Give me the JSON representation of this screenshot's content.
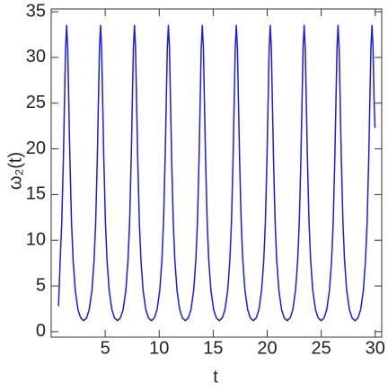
{
  "chart_data": {
    "type": "line",
    "xlabel": "t",
    "ylabel": "ω₂(t)",
    "xlim": [
      0,
      30.6
    ],
    "ylim": [
      -0.6,
      35.3
    ],
    "xticks": [
      5,
      10,
      15,
      20,
      25,
      30
    ],
    "yticks": [
      0,
      5,
      10,
      15,
      20,
      25,
      30,
      35
    ],
    "grid": false,
    "series": [
      {
        "color": "#1a1ae6",
        "x": [
          0.68,
          0.83,
          0.98,
          1.13,
          1.23,
          1.33,
          1.43,
          1.53,
          1.63,
          1.73,
          1.88,
          2.03,
          2.23,
          2.48,
          2.73,
          3.0,
          3.27,
          3.52,
          3.77,
          3.97,
          4.12,
          4.27,
          4.37,
          4.47,
          4.57,
          4.67,
          4.77,
          4.87,
          5.02,
          5.17,
          5.37,
          5.62,
          5.87,
          6.14,
          6.41,
          6.66,
          6.91,
          7.11,
          7.26,
          7.41,
          7.51,
          7.61,
          7.71,
          7.81,
          7.91,
          8.01,
          8.16,
          8.31,
          8.51,
          8.76,
          9.01,
          9.28,
          9.55,
          9.8,
          10.05,
          10.25,
          10.4,
          10.55,
          10.65,
          10.75,
          10.85,
          10.95,
          11.05,
          11.15,
          11.3,
          11.45,
          11.65,
          11.9,
          12.15,
          12.42,
          12.69,
          12.94,
          13.19,
          13.39,
          13.54,
          13.69,
          13.79,
          13.89,
          13.99,
          14.09,
          14.19,
          14.29,
          14.44,
          14.59,
          14.79,
          15.04,
          15.29,
          15.57,
          15.84,
          16.09,
          16.34,
          16.54,
          16.69,
          16.84,
          16.94,
          17.04,
          17.14,
          17.24,
          17.34,
          17.44,
          17.59,
          17.74,
          17.94,
          18.19,
          18.44,
          18.71,
          18.98,
          19.23,
          19.48,
          19.68,
          19.83,
          19.98,
          20.08,
          20.18,
          20.28,
          20.38,
          20.48,
          20.58,
          20.73,
          20.88,
          21.08,
          21.33,
          21.58,
          21.85,
          22.12,
          22.37,
          22.62,
          22.82,
          22.97,
          23.12,
          23.22,
          23.32,
          23.42,
          23.52,
          23.62,
          23.72,
          23.87,
          24.02,
          24.22,
          24.47,
          24.72,
          24.99,
          25.26,
          25.51,
          25.76,
          25.96,
          26.11,
          26.26,
          26.36,
          26.46,
          26.56,
          26.66,
          26.76,
          26.86,
          27.01,
          27.16,
          27.36,
          27.61,
          27.86,
          28.13,
          28.4,
          28.65,
          28.9,
          29.1,
          29.25,
          29.4,
          29.5,
          29.6,
          29.7,
          29.8,
          29.9,
          29.98
        ],
        "values": [
          2.8,
          7.8,
          12,
          19,
          25,
          31,
          33.5,
          31,
          25,
          19,
          12,
          7.8,
          4.5,
          2.4,
          1.5,
          1.2,
          1.5,
          2.4,
          4.5,
          7.8,
          12,
          19,
          25,
          31,
          33.5,
          31,
          25,
          19,
          12,
          7.8,
          4.5,
          2.4,
          1.5,
          1.2,
          1.5,
          2.4,
          4.5,
          7.8,
          12,
          19,
          25,
          31,
          33.5,
          31,
          25,
          19,
          12,
          7.8,
          4.5,
          2.4,
          1.5,
          1.2,
          1.5,
          2.4,
          4.5,
          7.8,
          12,
          19,
          25,
          31,
          33.5,
          31,
          25,
          19,
          12,
          7.8,
          4.5,
          2.4,
          1.5,
          1.2,
          1.5,
          2.4,
          4.5,
          7.8,
          12,
          19,
          25,
          31,
          33.5,
          31,
          25,
          19,
          12,
          7.8,
          4.5,
          2.4,
          1.5,
          1.2,
          1.5,
          2.4,
          4.5,
          7.8,
          12,
          19,
          25,
          31,
          33.5,
          31,
          25,
          19,
          12,
          7.8,
          4.5,
          2.4,
          1.5,
          1.2,
          1.5,
          2.4,
          4.5,
          7.8,
          12,
          19,
          25,
          31,
          33.5,
          31,
          25,
          19,
          12,
          7.8,
          4.5,
          2.4,
          1.5,
          1.2,
          1.5,
          2.4,
          4.5,
          7.8,
          12,
          19,
          25,
          31,
          33.5,
          31,
          25,
          19,
          12,
          7.8,
          4.5,
          2.4,
          1.5,
          1.2,
          1.5,
          2.4,
          4.5,
          7.8,
          12,
          19,
          25,
          31,
          33.5,
          31,
          25,
          19,
          12,
          7.8,
          4.5,
          2.4,
          1.5,
          1.2,
          1.5,
          2.4,
          4.5,
          7.8,
          12,
          19,
          25,
          31,
          33.5,
          31,
          25,
          22.3
        ]
      }
    ]
  }
}
